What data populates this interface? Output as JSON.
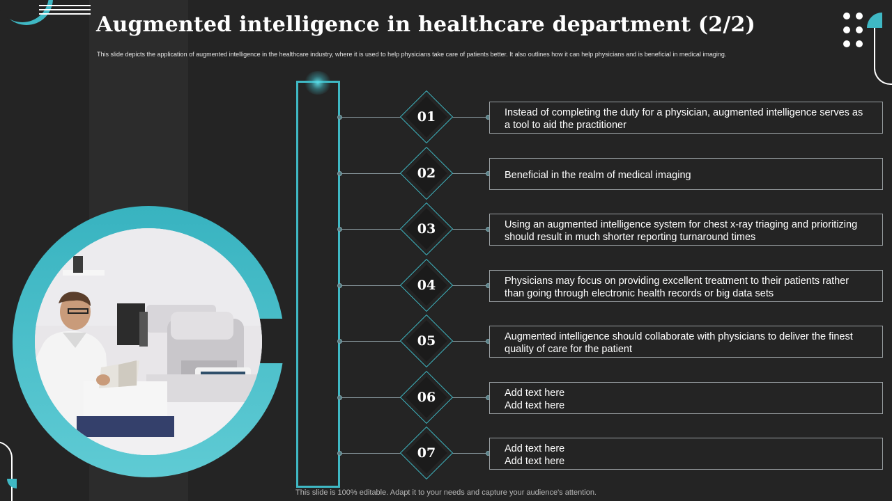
{
  "slide": {
    "title": "Augmented intelligence in healthcare department (2/2)",
    "subtitle": "This slide depicts the application of augmented intelligence in the healthcare industry, where it is used to help physicians take care of patients better. It also outlines how it can help physicians and is beneficial in medical imaging.",
    "footer": "This slide is 100% editable. Adapt it to your needs and capture your audience's attention."
  },
  "colors": {
    "accent": "#3fb8c4",
    "background": "#242424",
    "text": "#ffffff"
  },
  "image": {
    "description_icon": "doctor-with-eye-examination-equipment-photo"
  },
  "items": [
    {
      "number": "01",
      "text": "Instead of completing the duty for a physician, augmented intelligence serves as a tool to aid the practitioner"
    },
    {
      "number": "02",
      "text": "Beneficial in the realm of medical imaging"
    },
    {
      "number": "03",
      "text": "Using an augmented intelligence system for chest x-ray triaging and prioritizing should result in much shorter reporting turnaround times"
    },
    {
      "number": "04",
      "text": "Physicians may focus on providing excellent treatment to their patients rather than going through electronic health records or big data sets"
    },
    {
      "number": "05",
      "text": "Augmented intelligence should collaborate with physicians to deliver the finest quality of care for the patient"
    },
    {
      "number": "06",
      "text": "Add text here\nAdd text here"
    },
    {
      "number": "07",
      "text": "Add text here\nAdd text here"
    }
  ]
}
